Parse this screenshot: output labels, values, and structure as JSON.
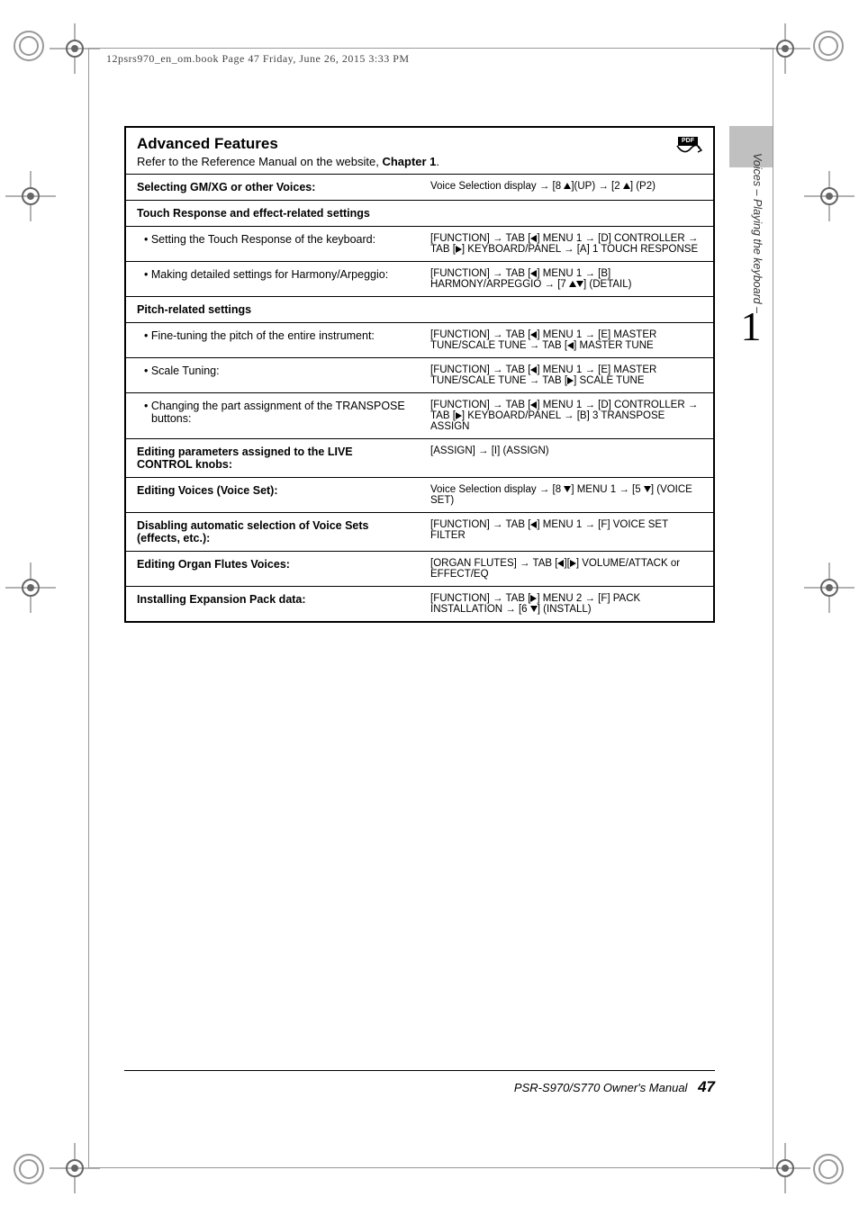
{
  "pageinfo": "12psrs970_en_om.book  Page 47  Friday, June 26, 2015  3:33 PM",
  "section": {
    "title": "Advanced Features",
    "subtitle_pre": "Refer to the Reference Manual on the website, ",
    "subtitle_bold": "Chapter 1",
    "subtitle_post": ".",
    "pdf_label": "PDF"
  },
  "rows": [
    {
      "type": "main",
      "left": "Selecting GM/XG or other Voices:",
      "right": "Voice Selection display → [8 ▲](UP) → [2 ▲] (P2)"
    },
    {
      "type": "header",
      "left": "Touch Response and effect-related settings",
      "right": ""
    },
    {
      "type": "sub",
      "left": "• Setting the Touch Response of the keyboard:",
      "right": "[FUNCTION] → TAB [◀] MENU 1 → [D] CONTROLLER → TAB [▶] KEYBOARD/PANEL → [A] 1 TOUCH RESPONSE"
    },
    {
      "type": "sub",
      "left": "• Making detailed settings for Harmony/Arpeggio:",
      "right": "[FUNCTION] → TAB [◀] MENU 1 → [B] HARMONY/ARPEGGIO → [7 ▲▼] (DETAIL)"
    },
    {
      "type": "header",
      "left": "Pitch-related settings",
      "right": ""
    },
    {
      "type": "sub",
      "left": "• Fine-tuning the pitch of the entire instrument:",
      "right": "[FUNCTION] → TAB [◀] MENU 1 → [E] MASTER TUNE/SCALE TUNE → TAB [◀] MASTER TUNE"
    },
    {
      "type": "sub",
      "left": "• Scale Tuning:",
      "right": "[FUNCTION] → TAB [◀] MENU 1 → [E] MASTER TUNE/SCALE TUNE → TAB [▶] SCALE TUNE"
    },
    {
      "type": "sub",
      "left": "• Changing the part assignment of the TRANSPOSE buttons:",
      "right": "[FUNCTION] → TAB [◀] MENU 1 → [D] CONTROLLER → TAB [▶] KEYBOARD/PANEL → [B] 3 TRANSPOSE ASSIGN"
    },
    {
      "type": "main",
      "left": "Editing parameters assigned to the LIVE CONTROL knobs:",
      "right": "[ASSIGN] → [I] (ASSIGN)"
    },
    {
      "type": "main",
      "left": "Editing Voices (Voice Set):",
      "right": "Voice Selection display → [8 ▼] MENU 1 → [5 ▼] (VOICE SET)"
    },
    {
      "type": "main",
      "left": "Disabling automatic selection of Voice Sets (effects, etc.):",
      "right": "[FUNCTION] → TAB [◀] MENU 1 → [F] VOICE SET FILTER"
    },
    {
      "type": "main",
      "left": "Editing Organ Flutes Voices:",
      "right": "[ORGAN FLUTES] → TAB [◀][▶] VOLUME/ATTACK or EFFECT/EQ"
    },
    {
      "type": "main",
      "left": "Installing Expansion Pack data:",
      "right": "[FUNCTION] → TAB [▶] MENU 2 → [F] PACK INSTALLATION → [6 ▼] (INSTALL)"
    }
  ],
  "chapter_number": "1",
  "side_label": "Voices – Playing the keyboard –",
  "footer": {
    "model": "PSR-S970/S770 Owner's Manual",
    "page": "47"
  }
}
